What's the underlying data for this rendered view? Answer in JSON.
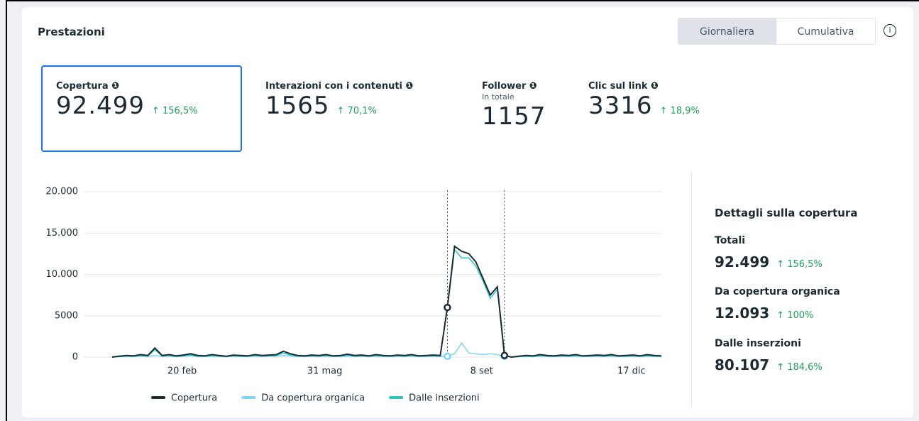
{
  "header": {
    "title": "Prestazioni",
    "tabs": [
      "Giornaliera",
      "Cumulativa"
    ]
  },
  "metrics": [
    {
      "label": "Copertura",
      "value": "92.499",
      "change": "↑ 156,5%"
    },
    {
      "label": "Interazioni con i contenuti",
      "value": "1565",
      "change": "↑ 70,1%"
    },
    {
      "label": "Follower",
      "sublabel": "In totale",
      "value": "1157"
    },
    {
      "label": "Clic sul link",
      "value": "3316",
      "change": "↑ 18,9%"
    }
  ],
  "chart_data": {
    "type": "line",
    "categories": [
      null,
      null,
      null,
      null,
      null,
      null,
      null,
      null,
      null,
      null,
      null,
      "20 feb",
      null,
      null,
      null,
      null,
      null,
      null,
      null,
      null,
      null,
      null,
      null,
      null,
      null,
      null,
      null,
      null,
      null,
      null,
      null,
      "31 mag",
      null,
      null,
      null,
      null,
      null,
      null,
      null,
      null,
      null,
      null,
      null,
      null,
      null,
      null,
      null,
      null,
      null,
      null,
      null,
      null,
      null,
      "8 set",
      null,
      null,
      null,
      null,
      null,
      null,
      null,
      null,
      null,
      null,
      null,
      null,
      null,
      null,
      null,
      null,
      null,
      null,
      null,
      null,
      "17 dic",
      null,
      null,
      null
    ],
    "series": [
      {
        "name": "Copertura",
        "color": "#1c2b33",
        "values": [
          0,
          100,
          200,
          150,
          300,
          200,
          1100,
          200,
          300,
          150,
          250,
          400,
          200,
          150,
          300,
          200,
          100,
          250,
          200,
          150,
          300,
          200,
          250,
          300,
          700,
          400,
          200,
          150,
          250,
          200,
          300,
          150,
          200,
          350,
          200,
          250,
          150,
          300,
          200,
          150,
          250,
          200,
          300,
          150,
          200,
          250,
          200,
          6000,
          13400,
          12800,
          12500,
          11500,
          9500,
          7500,
          8500,
          200,
          0,
          100,
          200,
          150,
          300,
          200,
          150,
          250,
          200,
          300,
          150,
          200,
          250,
          200,
          300,
          150,
          200,
          250,
          150,
          300,
          200,
          150
        ]
      },
      {
        "name": "Da copertura organica",
        "color": "#7fd3f5",
        "values": [
          0,
          50,
          100,
          50,
          100,
          80,
          200,
          80,
          100,
          50,
          100,
          150,
          80,
          50,
          100,
          80,
          50,
          100,
          80,
          50,
          100,
          80,
          100,
          100,
          200,
          150,
          80,
          50,
          100,
          80,
          100,
          50,
          80,
          120,
          80,
          100,
          50,
          100,
          80,
          50,
          100,
          80,
          100,
          50,
          80,
          100,
          80,
          100,
          400,
          1700,
          500,
          400,
          300,
          400,
          300,
          100,
          0,
          50,
          80,
          50,
          100,
          80,
          50,
          100,
          80,
          100,
          50,
          80,
          100,
          80,
          100,
          50,
          80,
          100,
          50,
          100,
          80,
          50
        ]
      },
      {
        "name": "Dalle inserzioni",
        "color": "#2bc4c4",
        "values": [
          0,
          50,
          100,
          100,
          200,
          120,
          900,
          120,
          200,
          100,
          150,
          250,
          120,
          100,
          200,
          120,
          50,
          150,
          120,
          100,
          200,
          120,
          150,
          200,
          500,
          250,
          120,
          100,
          150,
          120,
          200,
          100,
          120,
          230,
          120,
          150,
          100,
          200,
          120,
          100,
          150,
          120,
          200,
          100,
          120,
          150,
          120,
          5900,
          13000,
          12000,
          12000,
          11000,
          9200,
          7100,
          8200,
          100,
          0,
          50,
          120,
          100,
          200,
          120,
          100,
          150,
          120,
          200,
          100,
          120,
          150,
          120,
          200,
          100,
          120,
          150,
          100,
          200,
          120,
          100
        ]
      }
    ],
    "ylim": [
      0,
      20000
    ],
    "yticks": [
      0,
      5000,
      {
        "value": 10000,
        "label": "10.000"
      },
      {
        "value": 15000,
        "label": "15.000"
      },
      {
        "value": 20000,
        "label": "20.000"
      }
    ],
    "grid": true,
    "legend": "bottom"
  },
  "details": {
    "title": "Dettagli sulla copertura",
    "items": [
      {
        "label": "Totali",
        "value": "92.499",
        "change": "↑ 156,5%"
      },
      {
        "label": "Da copertura organica",
        "value": "12.093",
        "change": "↑ 100%"
      },
      {
        "label": "Dalle inserzioni",
        "value": "80.107",
        "change": "↑ 184,6%"
      }
    ]
  }
}
